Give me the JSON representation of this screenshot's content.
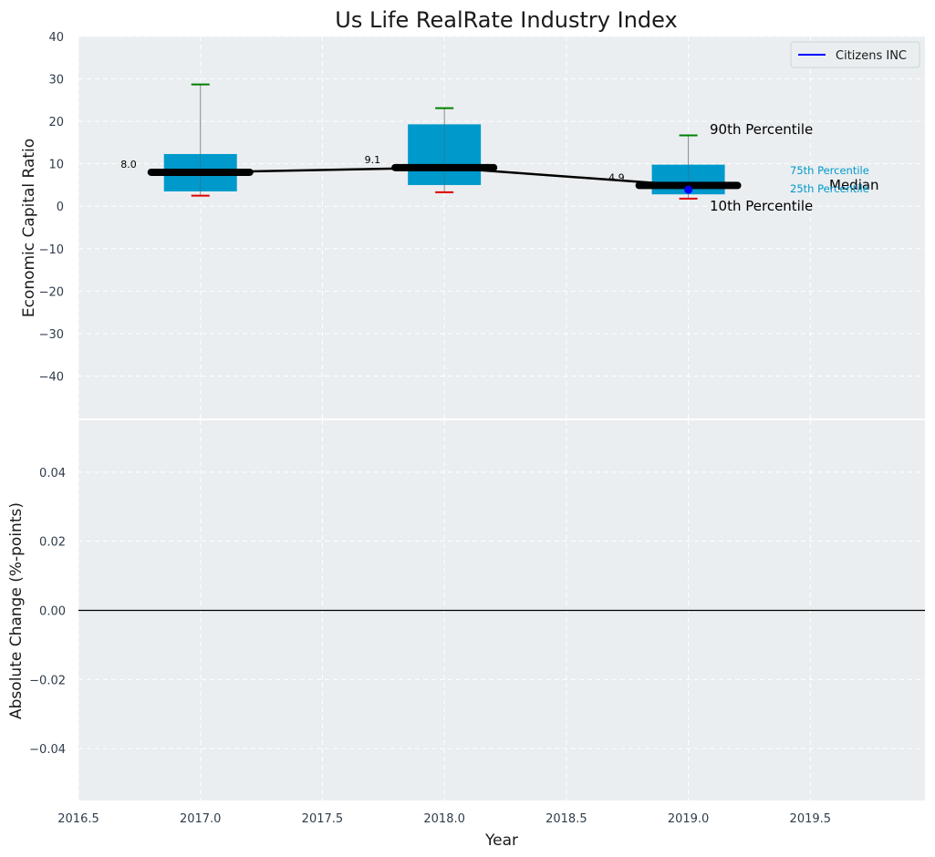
{
  "chart_data": {
    "type": "box",
    "title": "Us Life RealRate Industry Index",
    "xlabel": "Year",
    "x_ticks": [
      "2016.5",
      "2017.0",
      "2017.5",
      "2018.0",
      "2018.5",
      "2019.0",
      "2019.5"
    ],
    "x_tick_values": [
      2016.5,
      2017.0,
      2017.5,
      2018.0,
      2018.5,
      2019.0,
      2019.5
    ],
    "xlim": [
      2016.5,
      2019.97
    ],
    "grid": true,
    "legend_position": "top-right",
    "colors": {
      "box": "#0099cc",
      "median_line": "#000000",
      "p90_cap": "#008000",
      "p10_cap": "#e00000",
      "company": "#0000ff",
      "background": "#eaeef0",
      "grid": "#ffffff",
      "tick_text": "#2f3d4c"
    },
    "top_panel": {
      "ylabel": "Economic Capital Ratio",
      "ylim": [
        -50,
        40
      ],
      "y_ticks": [
        "40",
        "30",
        "20",
        "10",
        "0",
        "−10",
        "−20",
        "−30",
        "−40"
      ],
      "y_tick_values": [
        40,
        30,
        20,
        10,
        0,
        -10,
        -20,
        -30,
        -40
      ],
      "boxes": [
        {
          "year": 2017,
          "p10": 2.5,
          "p25": 3.5,
          "median": 8.0,
          "p75": 12.3,
          "p90": 28.7,
          "median_label": "8.0"
        },
        {
          "year": 2018,
          "p10": 3.3,
          "p25": 5.0,
          "median": 9.1,
          "p75": 19.3,
          "p90": 23.1,
          "median_label": "9.1"
        },
        {
          "year": 2019,
          "p10": 1.8,
          "p25": 2.8,
          "median": 4.9,
          "p75": 9.8,
          "p90": 16.7,
          "median_label": "4.9"
        }
      ],
      "company_series": {
        "name": "Citizens INC",
        "points": [
          {
            "year": 2019,
            "value": 3.9
          }
        ]
      },
      "annotations": {
        "p90": "90th Percentile",
        "p75": "75th Percentile",
        "median": "Median",
        "p25": "25th Percentile",
        "p10": "10th Percentile"
      }
    },
    "bottom_panel": {
      "ylabel": "Absolute Change (%-points)",
      "ylim": [
        -0.055,
        0.055
      ],
      "y_ticks": [
        "0.04",
        "0.02",
        "0.00",
        "−0.02",
        "−0.04"
      ],
      "y_tick_values": [
        0.04,
        0.02,
        0.0,
        -0.02,
        -0.04
      ],
      "zero_line": 0
    }
  }
}
